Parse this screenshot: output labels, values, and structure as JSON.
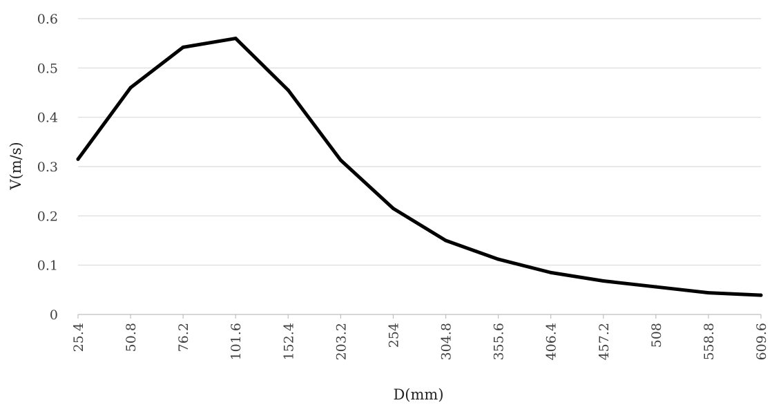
{
  "chart_data": {
    "type": "line",
    "xlabel": "D(mm)",
    "ylabel": "V(m/s)",
    "categories": [
      "25.4",
      "50.8",
      "76.2",
      "101.6",
      "152.4",
      "203.2",
      "254",
      "304.8",
      "355.6",
      "406.4",
      "457.2",
      "508",
      "558.8",
      "609.6"
    ],
    "series": [
      {
        "values": [
          0.315,
          0.46,
          0.542,
          0.56,
          0.455,
          0.313,
          0.215,
          0.15,
          0.112,
          0.085,
          0.068,
          0.056,
          0.044,
          0.039
        ],
        "color": "#000000"
      }
    ],
    "ylim": [
      0,
      0.6
    ],
    "yticks": [
      "0",
      "0.1",
      "0.2",
      "0.3",
      "0.4",
      "0.5",
      "0.6"
    ],
    "grid": true,
    "legend": "none"
  }
}
